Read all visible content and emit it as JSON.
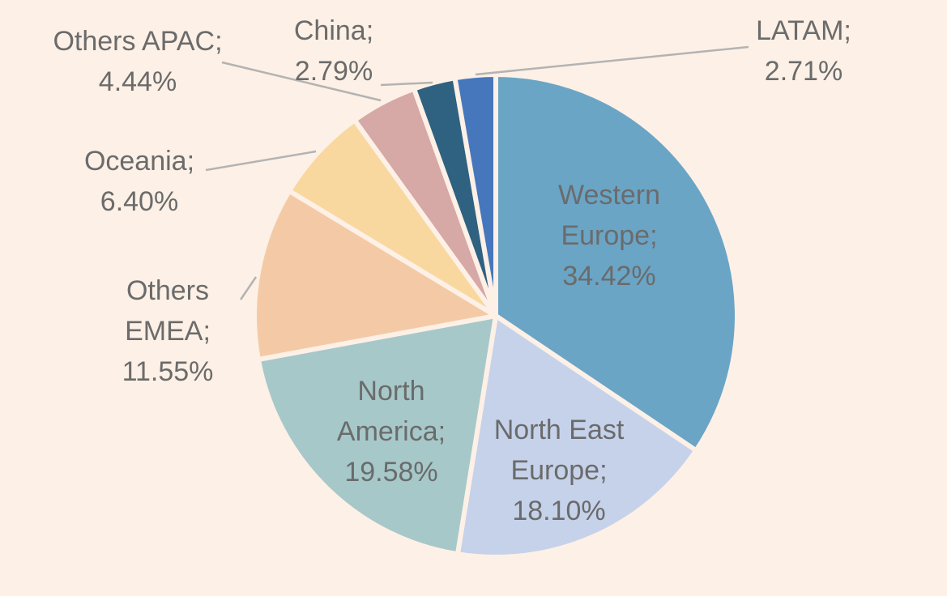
{
  "chart_data": {
    "type": "pie",
    "title": "",
    "slices": [
      {
        "label": "Western Europe",
        "value": 34.42,
        "display": [
          "Western",
          "Europe;",
          "34.42%"
        ],
        "color": "#6aa5c6",
        "inside": true
      },
      {
        "label": "North East Europe",
        "value": 18.1,
        "display": [
          "North East",
          "Europe;",
          "18.10%"
        ],
        "color": "#c5d2ea",
        "inside": true
      },
      {
        "label": "North America",
        "value": 19.58,
        "display": [
          "North",
          "America;",
          "19.58%"
        ],
        "color": "#a6c8c9",
        "inside": true
      },
      {
        "label": "Others EMEA",
        "value": 11.55,
        "display": [
          "Others",
          "EMEA;",
          "11.55%"
        ],
        "color": "#f4caa6",
        "inside": false
      },
      {
        "label": "Oceania",
        "value": 6.4,
        "display": [
          "Oceania;",
          "6.40%"
        ],
        "color": "#f9d8a0",
        "inside": false
      },
      {
        "label": "Others APAC",
        "value": 4.44,
        "display": [
          "Others APAC;",
          "4.44%"
        ],
        "color": "#d6a8a6",
        "inside": false
      },
      {
        "label": "China",
        "value": 2.79,
        "display": [
          "China;",
          "2.79%"
        ],
        "color": "#2f6181",
        "inside": false
      },
      {
        "label": "LATAM",
        "value": 2.71,
        "display": [
          "LATAM;",
          "2.71%"
        ],
        "color": "#4677bd",
        "inside": false
      }
    ],
    "start": "top",
    "direction": "clockwise",
    "legend": "none",
    "colors": {
      "background": "#fdf0e6",
      "label_text": "#6b6b6b",
      "leader_line": "#b3b3b3"
    }
  }
}
